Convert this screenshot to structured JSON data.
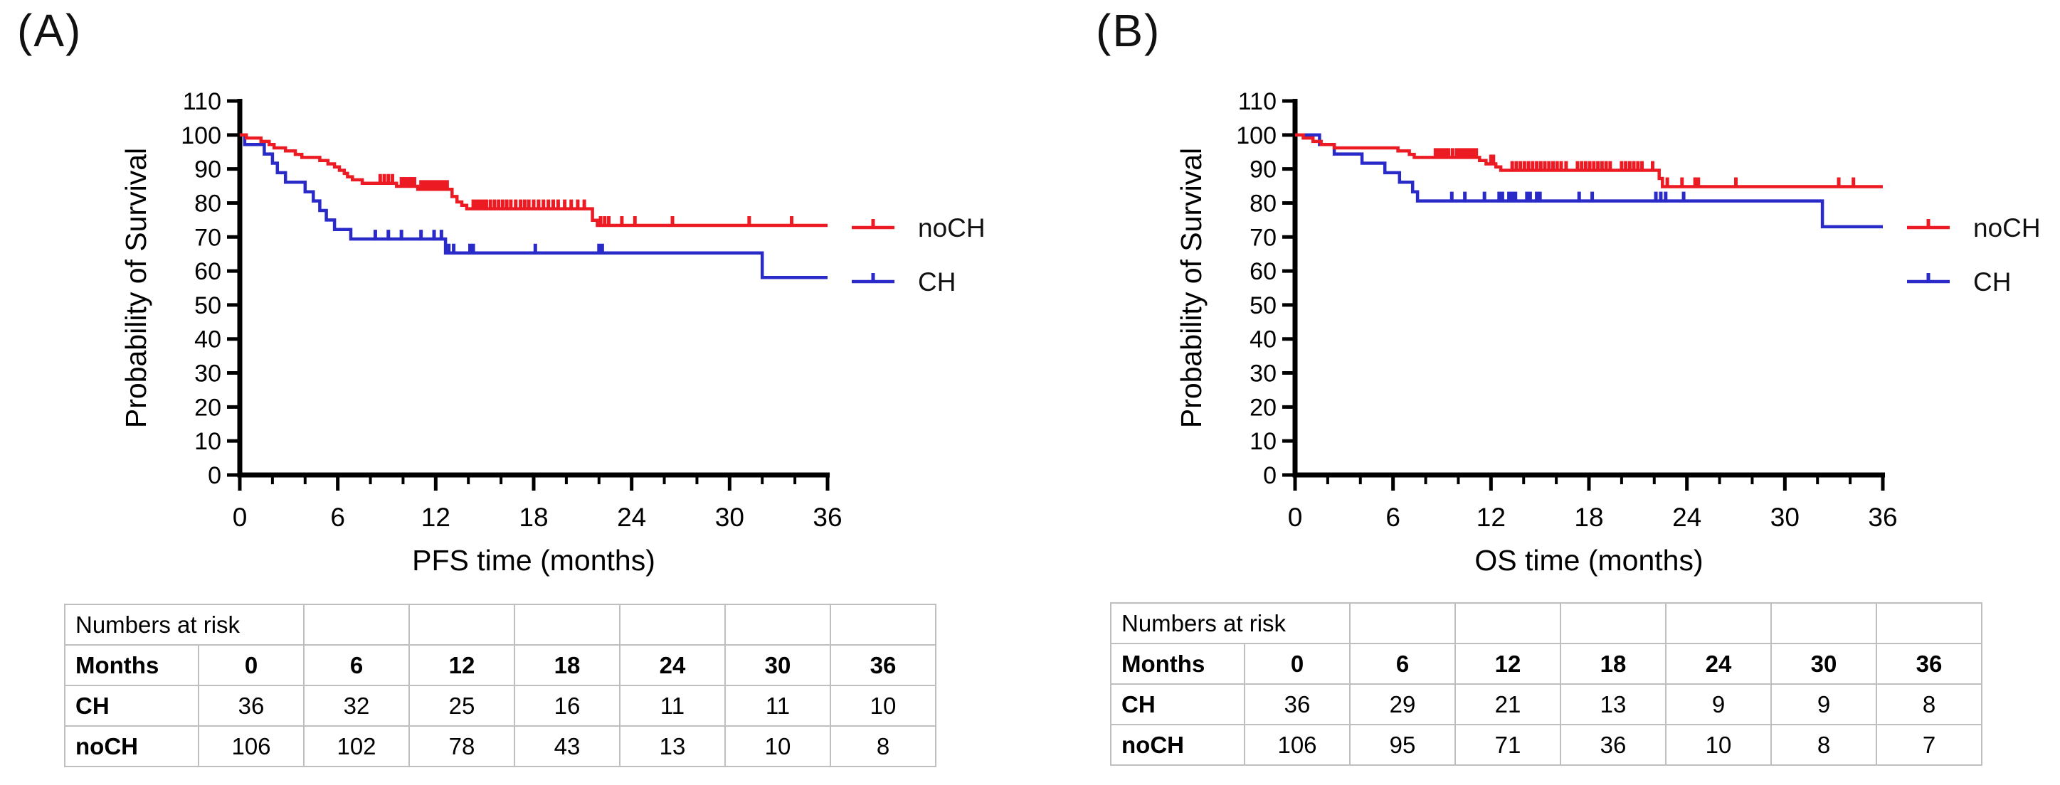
{
  "figure": {
    "colors": {
      "noCH": "#EC1B23",
      "CH": "#2A2AC8",
      "axis": "#000000",
      "table_border": "#BFBFBF",
      "background": "#FFFFFF"
    }
  },
  "chart_data": [
    {
      "type": "line",
      "subtype": "kaplan-meier-step",
      "title": "",
      "xlabel": "PFS time (months)",
      "ylabel": "Probability of Survival",
      "xlim": [
        0,
        36
      ],
      "ylim": [
        0,
        110
      ],
      "x_major_ticks": [
        0,
        6,
        12,
        18,
        24,
        30,
        36
      ],
      "x_minor_step": 2,
      "y_ticks": [
        0,
        10,
        20,
        30,
        40,
        50,
        60,
        70,
        80,
        90,
        100,
        110
      ],
      "grid": false,
      "legend_position": "right",
      "series": [
        {
          "name": "noCH",
          "color": "#EC1B23",
          "steps": [
            [
              0,
              100
            ],
            [
              0.4,
              99.1
            ],
            [
              1.3,
              98.1
            ],
            [
              1.8,
              97.2
            ],
            [
              2.1,
              96.2
            ],
            [
              2.8,
              95.3
            ],
            [
              3.4,
              94.3
            ],
            [
              3.8,
              93.4
            ],
            [
              4.9,
              92.5
            ],
            [
              5.4,
              91.5
            ],
            [
              5.8,
              90.6
            ],
            [
              6.1,
              89.6
            ],
            [
              6.4,
              88.7
            ],
            [
              6.6,
              87.7
            ],
            [
              6.9,
              86.8
            ],
            [
              7.5,
              85.8
            ],
            [
              9.6,
              84.9
            ],
            [
              10.9,
              84.0
            ],
            [
              13.0,
              81.9
            ],
            [
              13.3,
              80.3
            ],
            [
              13.6,
              79.3
            ],
            [
              13.9,
              78.3
            ],
            [
              21.6,
              74.9
            ],
            [
              21.9,
              73.4
            ],
            [
              36,
              73.4
            ]
          ],
          "censors": [
            [
              8.6,
              85.8
            ],
            [
              8.85,
              85.8
            ],
            [
              9.1,
              85.8
            ],
            [
              9.35,
              85.8
            ],
            [
              9.9,
              84.9
            ],
            [
              10.1,
              84.9
            ],
            [
              10.3,
              84.9
            ],
            [
              10.5,
              84.9
            ],
            [
              10.7,
              84.9
            ],
            [
              11.1,
              84.0
            ],
            [
              11.3,
              84.0
            ],
            [
              11.5,
              84.0
            ],
            [
              11.7,
              84.0
            ],
            [
              11.9,
              84.0
            ],
            [
              12.1,
              84.0
            ],
            [
              12.3,
              84.0
            ],
            [
              12.5,
              84.0
            ],
            [
              12.7,
              84.0
            ],
            [
              14.3,
              78.3
            ],
            [
              14.5,
              78.3
            ],
            [
              14.7,
              78.3
            ],
            [
              14.9,
              78.3
            ],
            [
              15.1,
              78.3
            ],
            [
              15.35,
              78.3
            ],
            [
              15.6,
              78.3
            ],
            [
              15.85,
              78.3
            ],
            [
              16.1,
              78.3
            ],
            [
              16.35,
              78.3
            ],
            [
              16.6,
              78.3
            ],
            [
              16.9,
              78.3
            ],
            [
              17.2,
              78.3
            ],
            [
              17.45,
              78.3
            ],
            [
              17.7,
              78.3
            ],
            [
              18.0,
              78.3
            ],
            [
              18.3,
              78.3
            ],
            [
              18.6,
              78.3
            ],
            [
              18.9,
              78.3
            ],
            [
              19.2,
              78.3
            ],
            [
              19.5,
              78.3
            ],
            [
              19.9,
              78.3
            ],
            [
              20.3,
              78.3
            ],
            [
              20.7,
              78.3
            ],
            [
              21.1,
              78.3
            ],
            [
              22.1,
              73.4
            ],
            [
              22.35,
              73.4
            ],
            [
              22.6,
              73.4
            ],
            [
              23.4,
              73.4
            ],
            [
              24.2,
              73.4
            ],
            [
              26.5,
              73.4
            ],
            [
              31.2,
              73.4
            ],
            [
              33.8,
              73.4
            ]
          ]
        },
        {
          "name": "CH",
          "color": "#2A2AC8",
          "steps": [
            [
              0,
              100
            ],
            [
              0.3,
              97.2
            ],
            [
              1.5,
              94.4
            ],
            [
              2.0,
              91.7
            ],
            [
              2.3,
              88.9
            ],
            [
              2.8,
              86.1
            ],
            [
              4.0,
              83.3
            ],
            [
              4.5,
              80.6
            ],
            [
              4.9,
              77.8
            ],
            [
              5.3,
              75.0
            ],
            [
              5.8,
              72.2
            ],
            [
              6.8,
              69.4
            ],
            [
              12.6,
              65.3
            ],
            [
              32.0,
              58.1
            ],
            [
              36,
              58.1
            ]
          ],
          "censors": [
            [
              8.3,
              69.4
            ],
            [
              9.1,
              69.4
            ],
            [
              9.9,
              69.4
            ],
            [
              11.1,
              69.4
            ],
            [
              11.9,
              69.4
            ],
            [
              12.35,
              69.4
            ],
            [
              12.8,
              65.3
            ],
            [
              13.1,
              65.3
            ],
            [
              14.1,
              65.3
            ],
            [
              14.3,
              65.3
            ],
            [
              18.1,
              65.3
            ],
            [
              22.0,
              65.3
            ],
            [
              22.2,
              65.3
            ]
          ]
        }
      ]
    },
    {
      "type": "line",
      "subtype": "kaplan-meier-step",
      "title": "",
      "xlabel": "OS time (months)",
      "ylabel": "Probability of Survival",
      "xlim": [
        0,
        36
      ],
      "ylim": [
        0,
        110
      ],
      "x_major_ticks": [
        0,
        6,
        12,
        18,
        24,
        30,
        36
      ],
      "x_minor_step": 2,
      "y_ticks": [
        0,
        10,
        20,
        30,
        40,
        50,
        60,
        70,
        80,
        90,
        100,
        110
      ],
      "grid": false,
      "legend_position": "right",
      "series": [
        {
          "name": "noCH",
          "color": "#EC1B23",
          "steps": [
            [
              0,
              100
            ],
            [
              0.5,
              99.1
            ],
            [
              1.1,
              98.1
            ],
            [
              1.6,
              97.2
            ],
            [
              2.4,
              96.2
            ],
            [
              6.3,
              95.3
            ],
            [
              7.0,
              94.3
            ],
            [
              7.3,
              93.4
            ],
            [
              11.3,
              92.5
            ],
            [
              11.7,
              91.5
            ],
            [
              12.3,
              90.6
            ],
            [
              12.6,
              89.6
            ],
            [
              22.3,
              87.2
            ],
            [
              22.5,
              84.8
            ],
            [
              36,
              84.8
            ]
          ],
          "censors": [
            [
              8.6,
              93.4
            ],
            [
              8.8,
              93.4
            ],
            [
              9.0,
              93.4
            ],
            [
              9.2,
              93.4
            ],
            [
              9.4,
              93.4
            ],
            [
              9.65,
              93.4
            ],
            [
              9.9,
              93.4
            ],
            [
              10.1,
              93.4
            ],
            [
              10.3,
              93.4
            ],
            [
              10.5,
              93.4
            ],
            [
              10.7,
              93.4
            ],
            [
              10.9,
              93.4
            ],
            [
              11.1,
              93.4
            ],
            [
              12.0,
              91.5
            ],
            [
              12.15,
              91.5
            ],
            [
              13.3,
              89.6
            ],
            [
              13.55,
              89.6
            ],
            [
              13.8,
              89.6
            ],
            [
              14.05,
              89.6
            ],
            [
              14.3,
              89.6
            ],
            [
              14.55,
              89.6
            ],
            [
              14.8,
              89.6
            ],
            [
              15.05,
              89.6
            ],
            [
              15.3,
              89.6
            ],
            [
              15.55,
              89.6
            ],
            [
              15.8,
              89.6
            ],
            [
              16.05,
              89.6
            ],
            [
              16.3,
              89.6
            ],
            [
              16.6,
              89.6
            ],
            [
              17.3,
              89.6
            ],
            [
              17.55,
              89.6
            ],
            [
              17.8,
              89.6
            ],
            [
              18.05,
              89.6
            ],
            [
              18.3,
              89.6
            ],
            [
              18.55,
              89.6
            ],
            [
              18.8,
              89.6
            ],
            [
              19.05,
              89.6
            ],
            [
              19.3,
              89.6
            ],
            [
              20.0,
              89.6
            ],
            [
              20.25,
              89.6
            ],
            [
              20.5,
              89.6
            ],
            [
              20.75,
              89.6
            ],
            [
              21.0,
              89.6
            ],
            [
              21.25,
              89.6
            ],
            [
              21.9,
              89.6
            ],
            [
              22.8,
              84.8
            ],
            [
              23.7,
              84.8
            ],
            [
              24.5,
              84.8
            ],
            [
              24.7,
              84.8
            ],
            [
              27.0,
              84.8
            ],
            [
              33.3,
              84.8
            ],
            [
              34.2,
              84.8
            ]
          ]
        },
        {
          "name": "CH",
          "color": "#2A2AC8",
          "steps": [
            [
              0,
              100
            ],
            [
              1.5,
              97.2
            ],
            [
              2.4,
              94.4
            ],
            [
              4.1,
              91.7
            ],
            [
              5.5,
              88.9
            ],
            [
              6.4,
              86.1
            ],
            [
              7.2,
              83.3
            ],
            [
              7.5,
              80.6
            ],
            [
              32.3,
              73.0
            ],
            [
              36,
              73.0
            ]
          ],
          "censors": [
            [
              9.6,
              80.6
            ],
            [
              10.4,
              80.6
            ],
            [
              11.6,
              80.6
            ],
            [
              12.5,
              80.6
            ],
            [
              12.7,
              80.6
            ],
            [
              13.1,
              80.6
            ],
            [
              13.3,
              80.6
            ],
            [
              13.5,
              80.6
            ],
            [
              14.2,
              80.6
            ],
            [
              14.4,
              80.6
            ],
            [
              14.8,
              80.6
            ],
            [
              15.0,
              80.6
            ],
            [
              17.4,
              80.6
            ],
            [
              18.2,
              80.6
            ],
            [
              22.1,
              80.6
            ],
            [
              22.4,
              80.6
            ],
            [
              22.7,
              80.6
            ],
            [
              23.8,
              80.6
            ]
          ]
        }
      ]
    }
  ],
  "panels": [
    {
      "label": "(A)",
      "risk_table": {
        "title": "Numbers at risk",
        "header": [
          "Months",
          "0",
          "6",
          "12",
          "18",
          "24",
          "30",
          "36"
        ],
        "rows": [
          [
            "CH",
            "36",
            "32",
            "25",
            "16",
            "11",
            "11",
            "10"
          ],
          [
            "noCH",
            "106",
            "102",
            "78",
            "43",
            "13",
            "10",
            "8"
          ]
        ]
      }
    },
    {
      "label": "(B)",
      "risk_table": {
        "title": "Numbers at risk",
        "header": [
          "Months",
          "0",
          "6",
          "12",
          "18",
          "24",
          "30",
          "36"
        ],
        "rows": [
          [
            "CH",
            "36",
            "29",
            "21",
            "13",
            "9",
            "9",
            "8"
          ],
          [
            "noCH",
            "106",
            "95",
            "71",
            "36",
            "10",
            "8",
            "7"
          ]
        ]
      }
    }
  ]
}
